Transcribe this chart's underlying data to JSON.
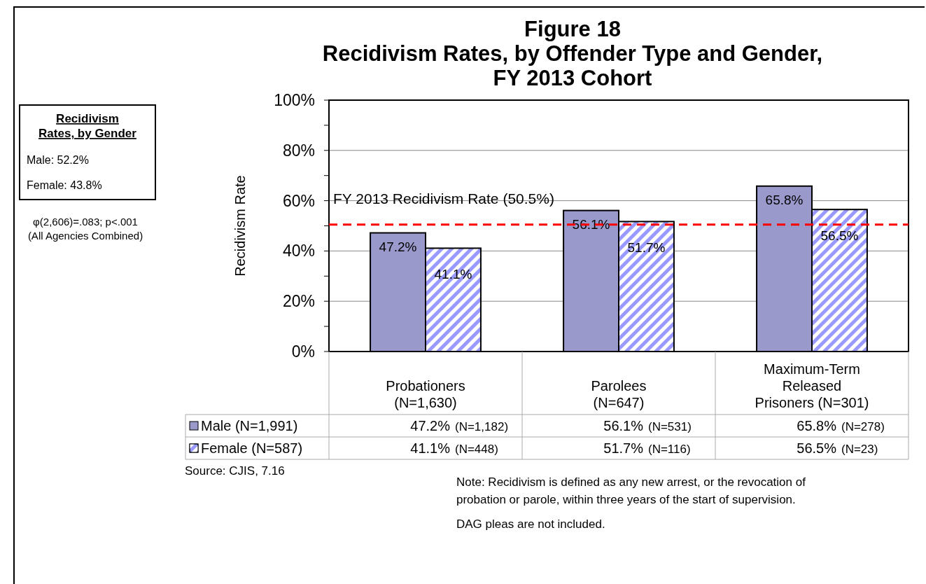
{
  "chart_data": {
    "type": "bar",
    "title": "Figure 18\nRecidivism Rates, by Offender Type and Gender,\nFY 2013 Cohort",
    "ylabel": "Recidivism Rate",
    "categories": [
      "Probationers\n(N=1,630)",
      "Parolees\n(N=647)",
      "Maximum-Term\nReleased\nPrisoners (N=301)"
    ],
    "series": [
      {
        "name": "Male (N=1,991)",
        "color": "#9999cc",
        "values": [
          47.2,
          56.1,
          65.8
        ],
        "value_labels": [
          "47.2%",
          "56.1%",
          "65.8%"
        ]
      },
      {
        "name": "Female (N=587)",
        "color": "#9999ff",
        "values": [
          41.1,
          51.7,
          56.5
        ],
        "value_labels": [
          "41.1%",
          "51.7%",
          "56.5%"
        ]
      }
    ],
    "ylim": [
      0,
      100
    ],
    "yticks": [
      {
        "value": 0,
        "label": "0%"
      },
      {
        "value": 10,
        "label": null
      },
      {
        "value": 20,
        "label": "20%"
      },
      {
        "value": 30,
        "label": null
      },
      {
        "value": 40,
        "label": "40%"
      },
      {
        "value": 50,
        "label": null
      },
      {
        "value": 60,
        "label": "60%"
      },
      {
        "value": 70,
        "label": null
      },
      {
        "value": 80,
        "label": "80%"
      },
      {
        "value": 90,
        "label": null
      },
      {
        "value": 100,
        "label": "100%"
      }
    ],
    "grid": "y",
    "legend": "bottom left",
    "ref_lines": [
      {
        "axis": "y",
        "value": 50.5,
        "label": "FY 2013 Recidivism Rate (50.5%)",
        "color": "#ff0000",
        "line_style": "dashed"
      }
    ],
    "annotations": [
      "Recidivism\nRates, by Gender",
      "Male: 52.2%",
      "Female: 43.8%",
      "φ(2,606)=.083; p<.001",
      "(All Agencies Combined)",
      "Source: CJIS, 7.16",
      "Note: Recidivism is defined as any new arrest, or the revocation of\nprobation or parole, within three years of the start of supervision.",
      "DAG pleas are not included.",
      "(N=1,182)",
      "(N=531)",
      "(N=278)",
      "(N=448)",
      "(N=116)",
      "(N=23)"
    ]
  }
}
